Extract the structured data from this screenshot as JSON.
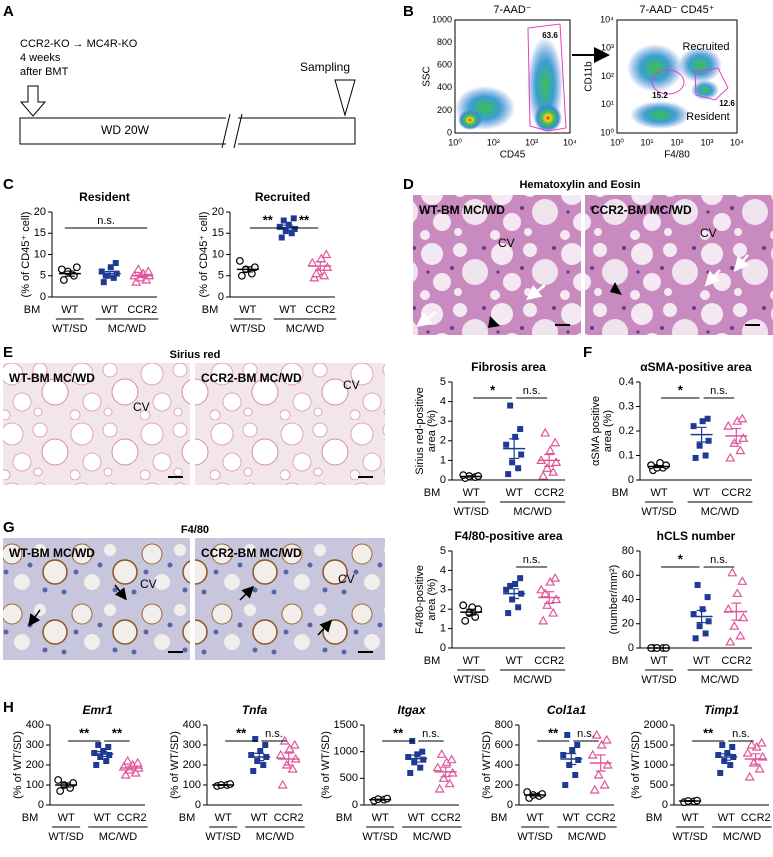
{
  "panels": {
    "A": {
      "letter": "A",
      "lines": [
        "CCR2-KO → MC4R-KO",
        "4 weeks",
        "after BMT"
      ],
      "sampling": "Sampling",
      "timeline": "WD 20W"
    },
    "B": {
      "letter": "B",
      "left": {
        "title": "7-AAD⁻",
        "ylabel": "SSC",
        "xlabel": "CD45",
        "yticks": [
          "0",
          "200",
          "400",
          "600",
          "800",
          "1000"
        ],
        "xticks": [
          "10⁰",
          "10²",
          "10³",
          "10⁴"
        ],
        "gate": "63.6"
      },
      "right": {
        "title": "7-AAD⁻ CD45⁺",
        "ylabel": "CD11b",
        "xlabel": "F4/80",
        "yticks": [
          "10⁰",
          "10¹",
          "10²",
          "10³",
          "10⁴"
        ],
        "xticks": [
          "10⁰",
          "10¹",
          "10²",
          "10³",
          "10⁴"
        ],
        "gates": [
          {
            "name": "Recruited",
            "value": "15.2"
          },
          {
            "name": "Resident",
            "value": "12.6"
          }
        ]
      }
    },
    "C": {
      "letter": "C"
    },
    "D": {
      "letter": "D",
      "title": "Hematoxylin and Eosin",
      "images": [
        {
          "label": "WT-BM MC/WD",
          "mark": "CV"
        },
        {
          "label": "CCR2-BM MC/WD",
          "mark": "CV"
        }
      ]
    },
    "E": {
      "letter": "E",
      "title": "Sirius red",
      "images": [
        {
          "label": "WT-BM MC/WD",
          "mark": "CV"
        },
        {
          "label": "CCR2-BM MC/WD",
          "mark": "CV"
        }
      ]
    },
    "F": {
      "letter": "F"
    },
    "G": {
      "letter": "G",
      "title": "F4/80",
      "images": [
        {
          "label": "WT-BM MC/WD",
          "mark": "CV"
        },
        {
          "label": "CCR2-BM MC/WD",
          "mark": "CV"
        }
      ]
    },
    "H": {
      "letter": "H"
    }
  },
  "chart_data": [
    {
      "type": "dotplot",
      "title": "Resident",
      "ylabel": [
        "(% of CD45⁺ cell)"
      ],
      "ylim": [
        0,
        20
      ],
      "yticks": [
        0,
        5,
        10,
        15,
        20
      ],
      "row_label": "BM",
      "categories": [
        "WT",
        "WT",
        "CCR2"
      ],
      "groups": [
        "WT/SD",
        "MC/WD"
      ],
      "colors": [
        "#000000",
        "#1f3a93",
        "#e0559a"
      ],
      "markers": [
        "circle",
        "square",
        "triangle"
      ],
      "values": [
        [
          4,
          5,
          6,
          7,
          6.5
        ],
        [
          3.5,
          4.5,
          5,
          5.5,
          6,
          7,
          8,
          5
        ],
        [
          3.5,
          4,
          4.5,
          5,
          5,
          5.5,
          6,
          6.5
        ]
      ],
      "means": [
        5.5,
        5.5,
        5
      ],
      "sems": [
        0.6,
        0.5,
        0.4
      ],
      "significance": [
        "n.s."
      ]
    },
    {
      "type": "dotplot",
      "title": "Recruited",
      "ylabel": [
        "(% of CD45⁺ cell)"
      ],
      "ylim": [
        0,
        20
      ],
      "yticks": [
        0,
        5,
        10,
        15,
        20
      ],
      "row_label": "BM",
      "categories": [
        "WT",
        "WT",
        "CCR2"
      ],
      "groups": [
        "WT/SD",
        "MC/WD"
      ],
      "colors": [
        "#000000",
        "#1f3a93",
        "#e0559a"
      ],
      "markers": [
        "circle",
        "square",
        "triangle"
      ],
      "values": [
        [
          5,
          5.5,
          6.5,
          7,
          8.5
        ],
        [
          14,
          15,
          15.5,
          16,
          16.5,
          17,
          18.5,
          18
        ],
        [
          4.5,
          5,
          6,
          7,
          8,
          9,
          10,
          5.5
        ]
      ],
      "means": [
        6.5,
        16.3,
        7.3
      ],
      "sems": [
        0.6,
        0.6,
        1
      ],
      "significance": [
        "**",
        "**"
      ]
    },
    {
      "type": "dotplot",
      "title": "Fibrosis area",
      "ylabel": [
        "Sirius red-positive",
        "area (%)"
      ],
      "ylim": [
        0,
        5
      ],
      "yticks": [
        0,
        1,
        2,
        3,
        4,
        5
      ],
      "row_label": "BM",
      "categories": [
        "WT",
        "WT",
        "CCR2"
      ],
      "groups": [
        "WT/SD",
        "MC/WD"
      ],
      "colors": [
        "#000000",
        "#1f3a93",
        "#e0559a"
      ],
      "markers": [
        "circle",
        "square",
        "triangle"
      ],
      "values": [
        [
          0.1,
          0.15,
          0.2,
          0.2,
          0.25
        ],
        [
          0.3,
          0.6,
          0.9,
          1.3,
          1.8,
          2.2,
          2.6,
          3.8
        ],
        [
          0.2,
          0.4,
          0.6,
          0.9,
          1,
          1.5,
          1.9,
          2.4
        ]
      ],
      "means": [
        0.18,
        1.6,
        1
      ],
      "sems": [
        0.03,
        0.5,
        0.3
      ],
      "significance": [
        "*",
        "n.s."
      ]
    },
    {
      "type": "dotplot",
      "title": "αSMA-positive area",
      "ylabel": [
        "αSMA positive",
        "area (%)"
      ],
      "ylim": [
        0,
        0.4
      ],
      "yticks": [
        0,
        0.1,
        0.2,
        0.3,
        0.4
      ],
      "row_label": "BM",
      "categories": [
        "WT",
        "WT",
        "CCR2"
      ],
      "groups": [
        "WT/SD",
        "MC/WD"
      ],
      "colors": [
        "#000000",
        "#1f3a93",
        "#e0559a"
      ],
      "markers": [
        "circle",
        "square",
        "triangle"
      ],
      "values": [
        [
          0.04,
          0.05,
          0.05,
          0.06,
          0.06,
          0.07
        ],
        [
          0.09,
          0.1,
          0.14,
          0.16,
          0.22,
          0.24,
          0.25
        ],
        [
          0.09,
          0.12,
          0.15,
          0.17,
          0.22,
          0.24,
          0.25
        ]
      ],
      "means": [
        0.055,
        0.185,
        0.18
      ],
      "sems": [
        0.004,
        0.03,
        0.03
      ],
      "significance": [
        "*",
        "n.s."
      ]
    },
    {
      "type": "dotplot",
      "title": "F4/80-positive area",
      "ylabel": [
        "F4/80-positive",
        "area (%)"
      ],
      "ylim": [
        0,
        5
      ],
      "yticks": [
        0,
        1,
        2,
        3,
        4,
        5
      ],
      "row_label": "BM",
      "categories": [
        "WT",
        "WT",
        "CCR2"
      ],
      "groups": [
        "WT/SD",
        "MC/WD"
      ],
      "colors": [
        "#000000",
        "#1f3a93",
        "#e0559a"
      ],
      "markers": [
        "circle",
        "square",
        "triangle"
      ],
      "values": [
        [
          1.4,
          1.6,
          1.8,
          2,
          2.2,
          2.1
        ],
        [
          1.8,
          2.1,
          2.5,
          2.8,
          3,
          3.3,
          3.6,
          3.2
        ],
        [
          1.4,
          1.8,
          2.2,
          2.5,
          3,
          3.4,
          3.6,
          2.8
        ]
      ],
      "means": [
        1.85,
        2.8,
        2.6
      ],
      "sems": [
        0.15,
        0.25,
        0.3
      ],
      "significance": [
        null,
        "n.s."
      ]
    },
    {
      "type": "dotplot",
      "title": "hCLS number",
      "ylabel": [
        "(number/mm²)"
      ],
      "ylim": [
        0,
        80
      ],
      "yticks": [
        0,
        20,
        40,
        60,
        80
      ],
      "row_label": "BM",
      "categories": [
        "WT",
        "WT",
        "CCR2"
      ],
      "groups": [
        "WT/SD",
        "MC/WD"
      ],
      "colors": [
        "#000000",
        "#1f3a93",
        "#e0559a"
      ],
      "markers": [
        "circle",
        "square",
        "triangle"
      ],
      "values": [
        [
          0,
          0,
          0,
          0,
          0
        ],
        [
          8,
          12,
          18,
          22,
          28,
          32,
          42,
          52
        ],
        [
          5,
          10,
          18,
          25,
          32,
          45,
          55,
          62
        ]
      ],
      "means": [
        0,
        26,
        30
      ],
      "sems": [
        0,
        5,
        7
      ],
      "significance": [
        "*",
        "n.s."
      ]
    },
    {
      "type": "dotplot",
      "title": "Emr1",
      "title_italic": true,
      "ylabel": [
        "(% of WT/SD)"
      ],
      "ylim": [
        0,
        400
      ],
      "yticks": [
        0,
        100,
        200,
        300,
        400
      ],
      "row_label": "BM",
      "categories": [
        "WT",
        "WT",
        "CCR2"
      ],
      "groups": [
        "WT/SD",
        "MC/WD"
      ],
      "colors": [
        "#000000",
        "#1f3a93",
        "#e0559a"
      ],
      "markers": [
        "circle",
        "square",
        "triangle"
      ],
      "values": [
        [
          70,
          85,
          100,
          110,
          125
        ],
        [
          200,
          220,
          240,
          250,
          260,
          270,
          290,
          300
        ],
        [
          150,
          160,
          175,
          185,
          190,
          200,
          210,
          220
        ]
      ],
      "means": [
        100,
        255,
        185
      ],
      "sems": [
        10,
        12,
        9
      ],
      "significance": [
        "**",
        "**"
      ]
    },
    {
      "type": "dotplot",
      "title": "Tnfa",
      "title_italic": true,
      "ylabel": [
        "(% of WT/SD)"
      ],
      "ylim": [
        0,
        400
      ],
      "yticks": [
        0,
        100,
        200,
        300,
        400
      ],
      "row_label": "BM",
      "categories": [
        "WT",
        "WT",
        "CCR2"
      ],
      "groups": [
        "WT/SD",
        "MC/WD"
      ],
      "colors": [
        "#000000",
        "#1f3a93",
        "#e0559a"
      ],
      "markers": [
        "circle",
        "square",
        "triangle"
      ],
      "values": [
        [
          95,
          100,
          100,
          105
        ],
        [
          170,
          200,
          220,
          240,
          250,
          270,
          300,
          330
        ],
        [
          100,
          180,
          200,
          230,
          250,
          280,
          300,
          320
        ]
      ],
      "means": [
        100,
        240,
        230
      ],
      "sems": [
        2,
        18,
        30
      ],
      "significance": [
        "**",
        "n.s."
      ]
    },
    {
      "type": "dotplot",
      "title": "Itgax",
      "title_italic": true,
      "ylabel": [
        "(% of WT/SD)"
      ],
      "ylim": [
        0,
        1500
      ],
      "yticks": [
        0,
        500,
        1000,
        1500
      ],
      "row_label": "BM",
      "categories": [
        "WT",
        "WT",
        "CCR2"
      ],
      "groups": [
        "WT/SD",
        "MC/WD"
      ],
      "colors": [
        "#000000",
        "#1f3a93",
        "#e0559a"
      ],
      "markers": [
        "circle",
        "square",
        "triangle"
      ],
      "values": [
        [
          80,
          100,
          110,
          120
        ],
        [
          600,
          700,
          800,
          850,
          900,
          950,
          1000,
          1200
        ],
        [
          300,
          400,
          500,
          600,
          700,
          800,
          850,
          950
        ]
      ],
      "means": [
        100,
        870,
        620
      ],
      "sems": [
        10,
        65,
        90
      ],
      "significance": [
        "**",
        "n.s."
      ]
    },
    {
      "type": "dotplot",
      "title": "Col1a1",
      "title_italic": true,
      "ylabel": [
        "(% of WT/SD)"
      ],
      "ylim": [
        0,
        800
      ],
      "yticks": [
        0,
        200,
        400,
        600,
        800
      ],
      "row_label": "BM",
      "categories": [
        "WT",
        "WT",
        "CCR2"
      ],
      "groups": [
        "WT/SD",
        "MC/WD"
      ],
      "colors": [
        "#000000",
        "#1f3a93",
        "#e0559a"
      ],
      "markers": [
        "circle",
        "square",
        "triangle"
      ],
      "values": [
        [
          70,
          90,
          100,
          110,
          130
        ],
        [
          200,
          300,
          400,
          450,
          500,
          550,
          600,
          700
        ],
        [
          150,
          200,
          300,
          400,
          500,
          600,
          650,
          700
        ]
      ],
      "means": [
        100,
        460,
        420
      ],
      "sems": [
        10,
        55,
        80
      ],
      "significance": [
        "**",
        "n.s."
      ]
    },
    {
      "type": "dotplot",
      "title": "Timp1",
      "title_italic": true,
      "ylabel": [
        "(% of WT/SD)"
      ],
      "ylim": [
        0,
        2000
      ],
      "yticks": [
        0,
        500,
        1000,
        1500,
        2000
      ],
      "row_label": "BM",
      "categories": [
        "WT",
        "WT",
        "CCR2"
      ],
      "groups": [
        "WT/SD",
        "MC/WD"
      ],
      "colors": [
        "#000000",
        "#1f3a93",
        "#e0559a"
      ],
      "markers": [
        "circle",
        "square",
        "triangle"
      ],
      "values": [
        [
          70,
          90,
          100,
          110
        ],
        [
          800,
          1000,
          1100,
          1200,
          1250,
          1300,
          1450,
          1500
        ],
        [
          700,
          900,
          1050,
          1200,
          1300,
          1450,
          1550,
          1500
        ]
      ],
      "means": [
        100,
        1200,
        1150
      ],
      "sems": [
        10,
        80,
        130
      ],
      "significance": [
        "**",
        "n.s."
      ]
    }
  ]
}
